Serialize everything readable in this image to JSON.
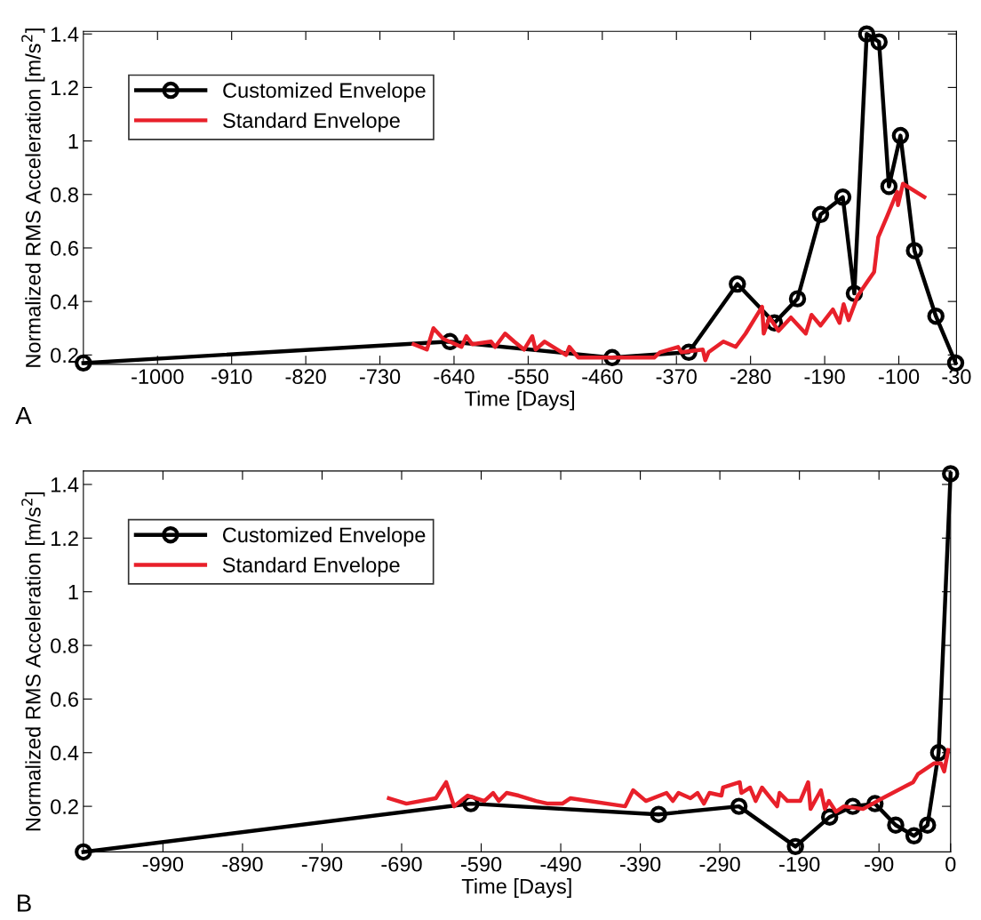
{
  "chart_data": [
    {
      "type": "line",
      "xlabel": "Time [Days]",
      "ylabel": "Normalized RMS Acceleration [m/s$^{2}$]",
      "annotations": [
        "A"
      ],
      "legend": "top left",
      "grid": false,
      "xlim": [
        -1090,
        -30
      ],
      "xticks": [
        -1000,
        -910,
        -820,
        -730,
        -640,
        -550,
        -460,
        -370,
        -280,
        -190,
        -100,
        -30
      ],
      "ylim": [
        0.165,
        1.41
      ],
      "yticks": [
        0.2,
        0.4,
        0.6,
        0.8,
        1,
        1.2,
        1.4
      ],
      "series": [
        {
          "name": "Customized Envelope",
          "color": "#000000",
          "marker": "circle",
          "x": [
            -1090,
            -645,
            -448,
            -355,
            -296,
            -251,
            -223,
            -195,
            -168,
            -154,
            -139,
            -124,
            -112,
            -98,
            -81,
            -55,
            -31
          ],
          "values": [
            0.17,
            0.25,
            0.19,
            0.21,
            0.465,
            0.32,
            0.41,
            0.725,
            0.79,
            0.43,
            1.4,
            1.37,
            0.83,
            1.02,
            0.59,
            0.345,
            0.17
          ]
        },
        {
          "name": "Standard Envelope",
          "color": "#e8202a",
          "marker": "none",
          "x": [
            -689,
            -673,
            -665,
            -653,
            -631,
            -625,
            -618,
            -595,
            -590,
            -578,
            -567,
            -555,
            -545,
            -541,
            -530,
            -504,
            -500,
            -489,
            -467,
            -445,
            -397,
            -390,
            -368,
            -364,
            -338,
            -335,
            -331,
            -313,
            -298,
            -286,
            -276,
            -266,
            -264,
            -257,
            -246,
            -231,
            -213,
            -206,
            -195,
            -180,
            -172,
            -167,
            -161,
            -150,
            -139,
            -130,
            -125,
            -114,
            -102,
            -101,
            -95,
            -69
          ],
          "values": [
            0.24,
            0.22,
            0.3,
            0.26,
            0.23,
            0.27,
            0.24,
            0.25,
            0.23,
            0.28,
            0.25,
            0.22,
            0.27,
            0.22,
            0.25,
            0.2,
            0.23,
            0.19,
            0.19,
            0.19,
            0.19,
            0.21,
            0.23,
            0.21,
            0.22,
            0.18,
            0.21,
            0.25,
            0.23,
            0.28,
            0.33,
            0.38,
            0.28,
            0.34,
            0.29,
            0.34,
            0.28,
            0.35,
            0.31,
            0.37,
            0.32,
            0.39,
            0.33,
            0.42,
            0.47,
            0.51,
            0.64,
            0.72,
            0.81,
            0.76,
            0.84,
            0.79
          ]
        }
      ]
    },
    {
      "type": "line",
      "xlabel": "Time [Days]",
      "ylabel": "Normalized RMS Acceleration [m/s$^{2}$]",
      "annotations": [
        "B"
      ],
      "legend": "top left",
      "grid": false,
      "xlim": [
        -1090,
        0
      ],
      "xticks": [
        -990,
        -890,
        -790,
        -690,
        -590,
        -490,
        -390,
        -290,
        -190,
        -90,
        0
      ],
      "ylim": [
        0.03,
        1.45
      ],
      "yticks": [
        0.2,
        0.4,
        0.6,
        0.8,
        1,
        1.2,
        1.4
      ],
      "series": [
        {
          "name": "Customized Envelope",
          "color": "#000000",
          "marker": "circle",
          "x": [
            -1090,
            -603,
            -367,
            -266,
            -195,
            -152,
            -123,
            -95,
            -69,
            -46,
            -29,
            -15,
            0
          ],
          "values": [
            0.03,
            0.21,
            0.17,
            0.2,
            0.05,
            0.16,
            0.2,
            0.21,
            0.13,
            0.09,
            0.13,
            0.4,
            1.44
          ]
        },
        {
          "name": "Standard Envelope",
          "color": "#e8202a",
          "marker": "none",
          "x": [
            -706,
            -684,
            -647,
            -634,
            -624,
            -607,
            -586,
            -575,
            -568,
            -558,
            -543,
            -521,
            -506,
            -488,
            -478,
            -409,
            -399,
            -383,
            -357,
            -349,
            -342,
            -327,
            -318,
            -310,
            -303,
            -288,
            -286,
            -265,
            -263,
            -252,
            -245,
            -237,
            -218,
            -215,
            -205,
            -189,
            -179,
            -176,
            -163,
            -158,
            -153,
            -144,
            -134,
            -110,
            -92,
            -47,
            -41,
            -21,
            -12,
            -8,
            -3
          ],
          "values": [
            0.23,
            0.21,
            0.23,
            0.29,
            0.2,
            0.24,
            0.22,
            0.25,
            0.22,
            0.25,
            0.24,
            0.22,
            0.21,
            0.21,
            0.23,
            0.2,
            0.26,
            0.22,
            0.25,
            0.22,
            0.25,
            0.23,
            0.25,
            0.21,
            0.25,
            0.24,
            0.27,
            0.29,
            0.25,
            0.27,
            0.22,
            0.27,
            0.2,
            0.25,
            0.22,
            0.22,
            0.29,
            0.19,
            0.26,
            0.19,
            0.22,
            0.18,
            0.2,
            0.19,
            0.22,
            0.29,
            0.32,
            0.36,
            0.36,
            0.33,
            0.41
          ]
        }
      ]
    }
  ]
}
